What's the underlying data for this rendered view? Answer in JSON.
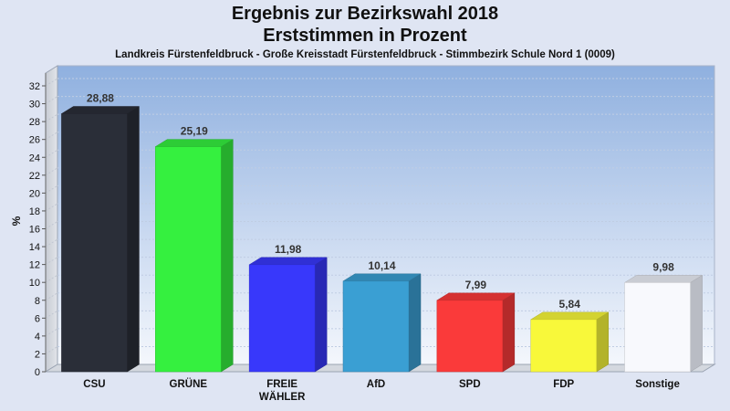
{
  "chart_data": {
    "type": "bar",
    "title": "Ergebnis zur Bezirkswahl 2018",
    "title2": "Erststimmen in Prozent",
    "subtitle": "Landkreis Fürstenfeldbruck - Große Kreisstadt Fürstenfeldbruck - Stimmbezirk Schule Nord 1 (0009)",
    "ylabel": "%",
    "xlabel": "",
    "ylim": [
      0,
      32
    ],
    "yticks": [
      0,
      2,
      4,
      6,
      8,
      10,
      12,
      14,
      16,
      18,
      20,
      22,
      24,
      26,
      28,
      30,
      32
    ],
    "grid": true,
    "categories": [
      "CSU",
      "GRÜNE",
      "FREIE\nWÄHLER",
      "AfD",
      "SPD",
      "FDP",
      "Sonstige"
    ],
    "values": [
      28.88,
      25.19,
      11.98,
      10.14,
      7.99,
      5.84,
      9.98
    ],
    "value_labels": [
      "28,88",
      "25,19",
      "11,98",
      "10,14",
      "7,99",
      "5,84",
      "9,98"
    ],
    "colors": [
      "#2a2e38",
      "#35f03f",
      "#3838fb",
      "#3a9fd3",
      "#fa3a3a",
      "#f8f83a",
      "#f8f9fd"
    ]
  }
}
